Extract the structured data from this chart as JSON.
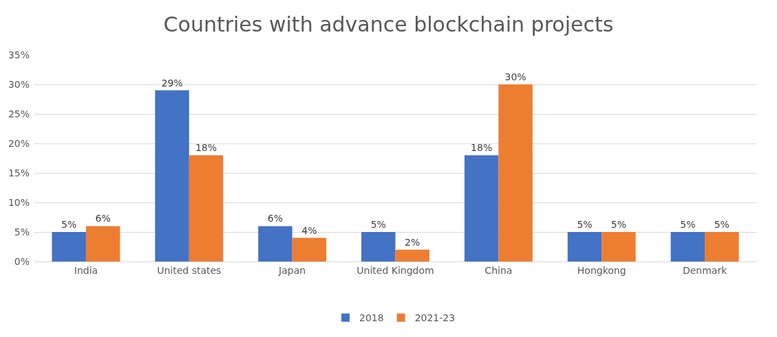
{
  "chart_data": {
    "type": "bar",
    "title": "Countries with advance blockchain projects",
    "categories": [
      "India",
      "United states",
      "Japan",
      "United Kingdom",
      "China",
      "Hongkong",
      "Denmark"
    ],
    "series": [
      {
        "name": "2018",
        "color": "#4472c4",
        "values": [
          5,
          29,
          6,
          5,
          18,
          5,
          5
        ],
        "value_labels": [
          "5%",
          "29%",
          "6%",
          "5%",
          "18%",
          "5%",
          "5%"
        ]
      },
      {
        "name": "2021-23",
        "color": "#ed7d31",
        "values": [
          6,
          18,
          4,
          2,
          30,
          5,
          5
        ],
        "value_labels": [
          "6%",
          "18%",
          "4%",
          "2%",
          "30%",
          "5%",
          "5%"
        ]
      }
    ],
    "ylim": [
      0,
      35
    ],
    "yticks": [
      {
        "value": 0,
        "label": "0%"
      },
      {
        "value": 5,
        "label": "5%"
      },
      {
        "value": 10,
        "label": "10%"
      },
      {
        "value": 15,
        "label": "15%"
      },
      {
        "value": 20,
        "label": "20%"
      },
      {
        "value": 25,
        "label": "25%"
      },
      {
        "value": 30,
        "label": "30%"
      },
      {
        "value": 35,
        "label": "35%"
      }
    ],
    "grid": "y",
    "legend": "bottom"
  }
}
